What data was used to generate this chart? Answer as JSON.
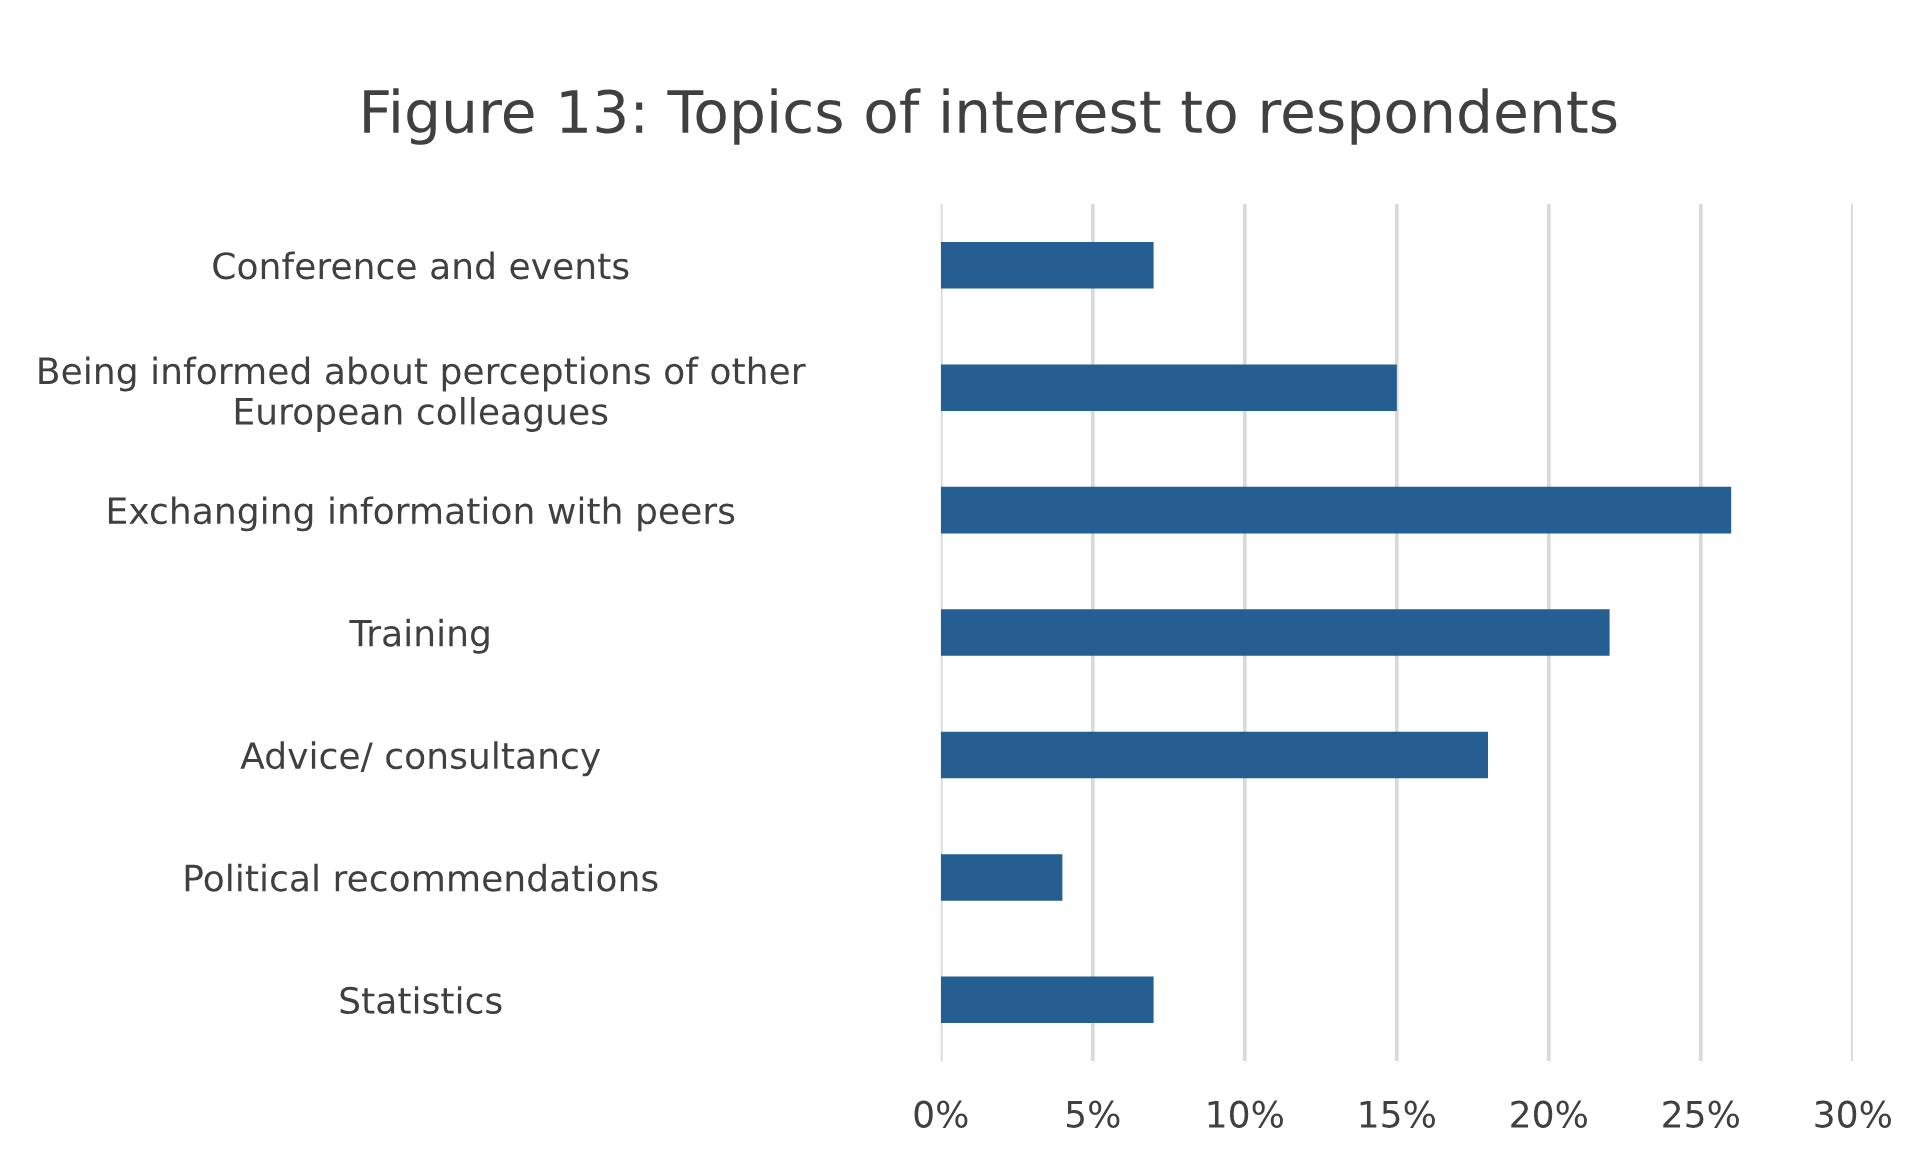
{
  "chart_data": {
    "type": "bar",
    "orientation": "horizontal",
    "title": "Figure 13: Topics of interest to respondents",
    "categories": [
      "Conference and events",
      "Being informed about perceptions of other\nEuropean colleagues",
      "Exchanging information with peers",
      "Training",
      "Advice/ consultancy",
      "Political recommendations",
      "Statistics"
    ],
    "values": [
      7,
      15,
      26,
      22,
      18,
      4,
      7
    ],
    "color": "#255e91",
    "xlim": [
      0,
      30
    ],
    "xticks": [
      {
        "value": 0,
        "label": "0%"
      },
      {
        "value": 5,
        "label": "5%"
      },
      {
        "value": 10,
        "label": "10%"
      },
      {
        "value": 15,
        "label": "15%"
      },
      {
        "value": 20,
        "label": "20%"
      },
      {
        "value": 25,
        "label": "25%"
      },
      {
        "value": 30,
        "label": "30%"
      }
    ],
    "grid": "x"
  }
}
